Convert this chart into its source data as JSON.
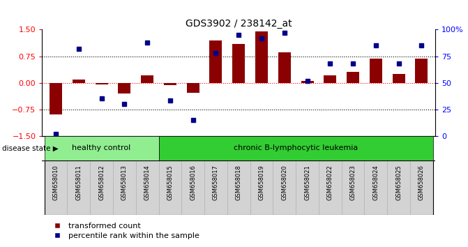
{
  "title": "GDS3902 / 238142_at",
  "samples": [
    "GSM658010",
    "GSM658011",
    "GSM658012",
    "GSM658013",
    "GSM658014",
    "GSM658015",
    "GSM658016",
    "GSM658017",
    "GSM658018",
    "GSM658019",
    "GSM658020",
    "GSM658021",
    "GSM658022",
    "GSM658023",
    "GSM658024",
    "GSM658025",
    "GSM658026"
  ],
  "bar_values": [
    -0.9,
    0.1,
    -0.05,
    -0.3,
    0.2,
    -0.07,
    -0.28,
    1.2,
    1.1,
    1.45,
    0.85,
    0.05,
    0.2,
    0.3,
    0.68,
    0.25,
    0.68
  ],
  "percentile_values": [
    2,
    82,
    35,
    30,
    88,
    33,
    15,
    78,
    95,
    92,
    97,
    52,
    68,
    68,
    85,
    68,
    85
  ],
  "healthy_control_count": 5,
  "bar_color": "#8B0000",
  "percentile_color": "#00008B",
  "healthy_bg": "#90EE90",
  "leukemia_bg": "#32CD32",
  "tick_bg": "#d3d3d3",
  "ylim": [
    -1.5,
    1.5
  ],
  "yticks_left": [
    -1.5,
    -0.75,
    0,
    0.75,
    1.5
  ],
  "yticks_right": [
    0,
    25,
    50,
    75,
    100
  ],
  "dotted_lines_black": [
    -0.75,
    0.75
  ],
  "dotted_line_red": 0,
  "group1_label": "healthy control",
  "group2_label": "chronic B-lymphocytic leukemia",
  "legend_bar": "transformed count",
  "legend_dot": "percentile rank within the sample",
  "disease_state_label": "disease state",
  "background_color": "#ffffff"
}
